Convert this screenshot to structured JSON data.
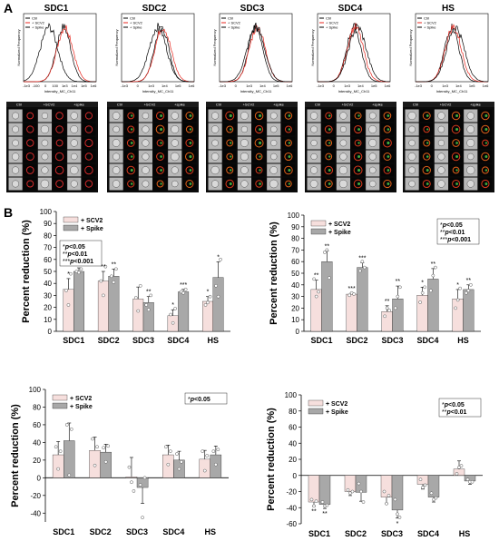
{
  "panel_a": {
    "label": "A",
    "histograms": [
      {
        "title": "SDC1",
        "ylabel": "Normalized Frequency",
        "xlabel": "Intensity_MC_Ch11",
        "ticks": [
          "-1e3",
          "-100",
          "0",
          "100",
          "1e3",
          "1e4",
          "1e5",
          "1e6"
        ],
        "legend": [
          "Ctrl",
          "+ SCV2",
          "+ Spike"
        ]
      },
      {
        "title": "SDC2",
        "ylabel": "Normalized Frequency",
        "xlabel": "Intensity_MC_Ch11",
        "ticks": [
          "-1e3",
          "0",
          "1e3",
          "1e4",
          "1e5",
          "1e6"
        ],
        "legend": [
          "Ctrl",
          "+ SCV2",
          "+ Spike"
        ]
      },
      {
        "title": "SDC3",
        "ylabel": "Normalized Frequency",
        "xlabel": "Intensity_MC_Ch11",
        "ticks": [
          "-1e3",
          "0",
          "1e3",
          "1e4",
          "1e5",
          "1e6"
        ],
        "legend": [
          "Ctrl",
          "+ SCV2",
          "+ Spike"
        ]
      },
      {
        "title": "SDC4",
        "ylabel": "Normalized Frequency",
        "xlabel": "Intensity_MC_Ch11",
        "ticks": [
          "-1e3",
          "0",
          "1e3",
          "1e4",
          "1e5",
          "1e6"
        ],
        "legend": [
          "Ctrl",
          "+ SCV2",
          "+ Spike"
        ]
      },
      {
        "title": "HS",
        "ylabel": "Normalized Frequency",
        "xlabel": "Intensity_MC_Ch11",
        "ticks": [
          "-1e3",
          "0",
          "1e3",
          "1e4",
          "1e5",
          "1e6"
        ],
        "legend": [
          "Ctrl",
          "+ SCV2",
          "+ Spike"
        ]
      }
    ],
    "micrographs": [
      {
        "headers": [
          "Ctrl",
          "+SCV2",
          "+spike"
        ]
      },
      {
        "headers": [
          "Ctrl",
          "+SCV2",
          "+spike"
        ]
      },
      {
        "headers": [
          "Ctrl",
          "+SCV2",
          "+spike"
        ]
      },
      {
        "headers": [
          "Ctrl",
          "+SCV2",
          "+spike"
        ]
      },
      {
        "headers": [
          "Ctrl",
          "+SCV2",
          "+spike"
        ]
      }
    ]
  },
  "panel_b_label": "B",
  "colors": {
    "scv2": "#f6dfdd",
    "spike": "#a8a8a8",
    "ctrl_line": "#000000",
    "scv2_line": "#e8251c",
    "spike_line": "#000000"
  },
  "chart_data": [
    {
      "type": "bar",
      "ylabel": "Percent reduction (%)",
      "categories": [
        "SDC1",
        "SDC2",
        "SDC3",
        "SDC4",
        "HS"
      ],
      "ylim": [
        0,
        100
      ],
      "yticks": [
        0,
        10,
        20,
        30,
        40,
        50,
        60,
        70,
        80,
        90,
        100
      ],
      "series": [
        {
          "name": "+ SCV2",
          "values": [
            35,
            42,
            27,
            13,
            25
          ],
          "errors": [
            9,
            8,
            10,
            5,
            4
          ]
        },
        {
          "name": "+ Spike",
          "values": [
            50,
            46,
            24,
            33,
            45
          ],
          "errors": [
            3,
            6,
            5,
            2,
            13
          ]
        }
      ],
      "points": [
        [
          [
            34,
            22,
            48
          ],
          [
            50,
            49,
            52
          ]
        ],
        [
          [
            42,
            30,
            54
          ],
          [
            46,
            41,
            52
          ]
        ],
        [
          [
            28,
            17,
            38
          ],
          [
            22,
            18,
            30
          ]
        ],
        [
          [
            14,
            7,
            19
          ],
          [
            33,
            32,
            35
          ]
        ],
        [
          [
            22,
            24,
            29
          ],
          [
            38,
            29,
            60
          ]
        ]
      ],
      "significance": [
        [
          "*",
          "***"
        ],
        [
          "**",
          "**"
        ],
        [
          "",
          "**"
        ],
        [
          "*",
          "***"
        ],
        [
          "*",
          "*"
        ]
      ],
      "legend": [
        "+ SCV2",
        "+ Spike"
      ],
      "legend_position": "top-left",
      "notes": [
        {
          "sig": "*",
          "p": "p",
          "op": "<0.05"
        },
        {
          "sig": "**",
          "p": "p",
          "op": "<0.01"
        },
        {
          "sig": "***",
          "p": "p",
          "op": "<0.001"
        }
      ]
    },
    {
      "type": "bar",
      "ylabel": "Percent reduction (%)",
      "categories": [
        "SDC1",
        "SDC2",
        "SDC3",
        "SDC4",
        "HS"
      ],
      "ylim": [
        0,
        100
      ],
      "yticks": [
        0,
        10,
        20,
        30,
        40,
        50,
        60,
        70,
        80,
        90,
        100
      ],
      "series": [
        {
          "name": "+ SCV2",
          "values": [
            36,
            32,
            17,
            31,
            28
          ],
          "errors": [
            8,
            1,
            5,
            7,
            8
          ]
        },
        {
          "name": "+ Spike",
          "values": [
            60,
            55,
            28,
            45,
            36
          ],
          "errors": [
            9,
            4,
            11,
            9,
            4
          ]
        }
      ],
      "points": [
        [
          [
            45,
            30,
            34
          ],
          [
            68,
            70,
            46
          ]
        ],
        [
          [
            31,
            33,
            32
          ],
          [
            52,
            60,
            55
          ]
        ],
        [
          [
            13,
            20,
            18
          ],
          [
            20,
            30,
            38
          ]
        ],
        [
          [
            25,
            33,
            38
          ],
          [
            35,
            48,
            55
          ]
        ],
        [
          [
            20,
            27,
            37
          ],
          [
            33,
            35,
            40
          ]
        ]
      ],
      "significance": [
        [
          "**",
          "**"
        ],
        [
          "***",
          "***"
        ],
        [
          "**",
          "**"
        ],
        [
          "*",
          "**"
        ],
        [
          "*",
          "**"
        ]
      ],
      "legend": [
        "+ SCV2",
        "+ Spike"
      ],
      "legend_position": "top-left",
      "notes": [
        {
          "sig": "*",
          "p": "p",
          "op": "<0.05"
        },
        {
          "sig": "**",
          "p": "p",
          "op": "<0.01"
        },
        {
          "sig": "***",
          "p": "p",
          "op": "<0.001"
        }
      ]
    },
    {
      "type": "bar",
      "ylabel": "Percent reduction (%)",
      "categories": [
        "SDC1",
        "SDC2",
        "SDC3",
        "SDC4",
        "HS"
      ],
      "ylim": [
        -50,
        100
      ],
      "yticks": [
        -40,
        -20,
        0,
        20,
        40,
        60,
        80,
        100
      ],
      "series": [
        {
          "name": "+ SCV2",
          "values": [
            26,
            31,
            1,
            26,
            21
          ],
          "errors": [
            15,
            15,
            22,
            11,
            10
          ]
        },
        {
          "name": "+ Spike",
          "values": [
            42,
            29,
            -11,
            20,
            26
          ],
          "errors": [
            20,
            9,
            18,
            10,
            10
          ]
        }
      ],
      "points": [
        [
          [
            35,
            10,
            30
          ],
          [
            60,
            3,
            55
          ]
        ],
        [
          [
            44,
            14,
            35
          ],
          [
            34,
            18,
            36
          ]
        ],
        [
          [
            12,
            -5,
            -15
          ],
          [
            -8,
            -45,
            0
          ]
        ],
        [
          [
            35,
            15,
            30
          ],
          [
            27,
            10,
            18
          ]
        ],
        [
          [
            30,
            8,
            25
          ],
          [
            30,
            15,
            32
          ]
        ]
      ],
      "significance": [
        [
          "",
          ""
        ],
        [
          "",
          ""
        ],
        [
          "",
          ""
        ],
        [
          "",
          ""
        ],
        [
          "",
          ""
        ]
      ],
      "legend": [
        "+ SCV2",
        "+ Spike"
      ],
      "legend_position": "top-left",
      "notes": [
        {
          "sig": "*",
          "p": "p",
          "op": "<0.05"
        }
      ]
    },
    {
      "type": "bar",
      "ylabel": "Percent reduction (%)",
      "categories": [
        "SDC1",
        "SDC2",
        "SDC3",
        "SDC4",
        "HS"
      ],
      "ylim": [
        -60,
        100
      ],
      "yticks": [
        -60,
        -40,
        -20,
        0,
        20,
        40,
        60,
        80,
        100
      ],
      "series": [
        {
          "name": "+ SCV2",
          "values": [
            -33,
            -20,
            -27,
            -11,
            8
          ],
          "errors": [
            5,
            5,
            8,
            6,
            10
          ]
        },
        {
          "name": "+ Spike",
          "values": [
            -36,
            -21,
            -43,
            -27,
            -7
          ],
          "errors": [
            5,
            11,
            10,
            6,
            4
          ]
        }
      ],
      "points": [
        [
          [
            -30,
            -38,
            -32
          ],
          [
            -33,
            -38,
            -37
          ]
        ],
        [
          [
            -18,
            -22,
            -20
          ],
          [
            -10,
            -20,
            -33
          ]
        ],
        [
          [
            -20,
            -35,
            -25
          ],
          [
            -30,
            -48,
            -52
          ]
        ],
        [
          [
            -5,
            -15,
            -12
          ],
          [
            -22,
            -30,
            -28
          ]
        ],
        [
          [
            2,
            10,
            12
          ],
          [
            -5,
            -8,
            -8
          ]
        ]
      ],
      "significance": [
        [
          "**",
          "**"
        ],
        [
          "",
          ""
        ],
        [
          "",
          "*"
        ],
        [
          "",
          ""
        ],
        [
          "",
          ""
        ]
      ],
      "legend": [
        "+ SCV2",
        "+ Spike"
      ],
      "legend_position": "top-left",
      "notes": [
        {
          "sig": "*",
          "p": "p",
          "op": "<0.05"
        },
        {
          "sig": "**",
          "p": "p",
          "op": "<0.01"
        }
      ]
    }
  ]
}
